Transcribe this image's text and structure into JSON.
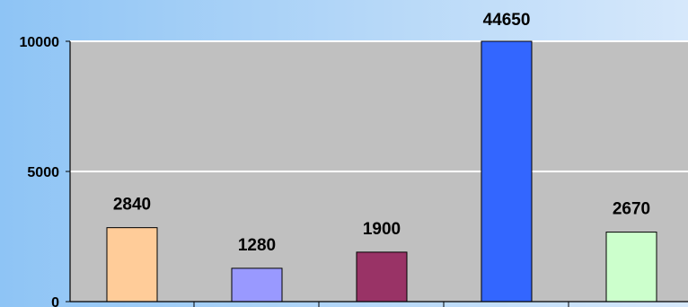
{
  "chart_data": {
    "type": "bar",
    "title": "",
    "xlabel": "",
    "ylabel": "",
    "ylim": [
      0,
      10000
    ],
    "yticks": [
      0,
      5000,
      10000
    ],
    "ytick_labels": [
      "0",
      "5000",
      "10000"
    ],
    "grid": true,
    "plot_background": "#c0c0c0",
    "values": [
      2840,
      1280,
      1900,
      44650,
      2670
    ],
    "data_labels": [
      "2840",
      "1280",
      "1900",
      "44650",
      "2670"
    ],
    "bar_colors": [
      "#ffcc99",
      "#9999ff",
      "#993366",
      "#3366ff",
      "#ccffcc"
    ],
    "clipped_at_axis_max": [
      false,
      false,
      false,
      true,
      false
    ]
  }
}
